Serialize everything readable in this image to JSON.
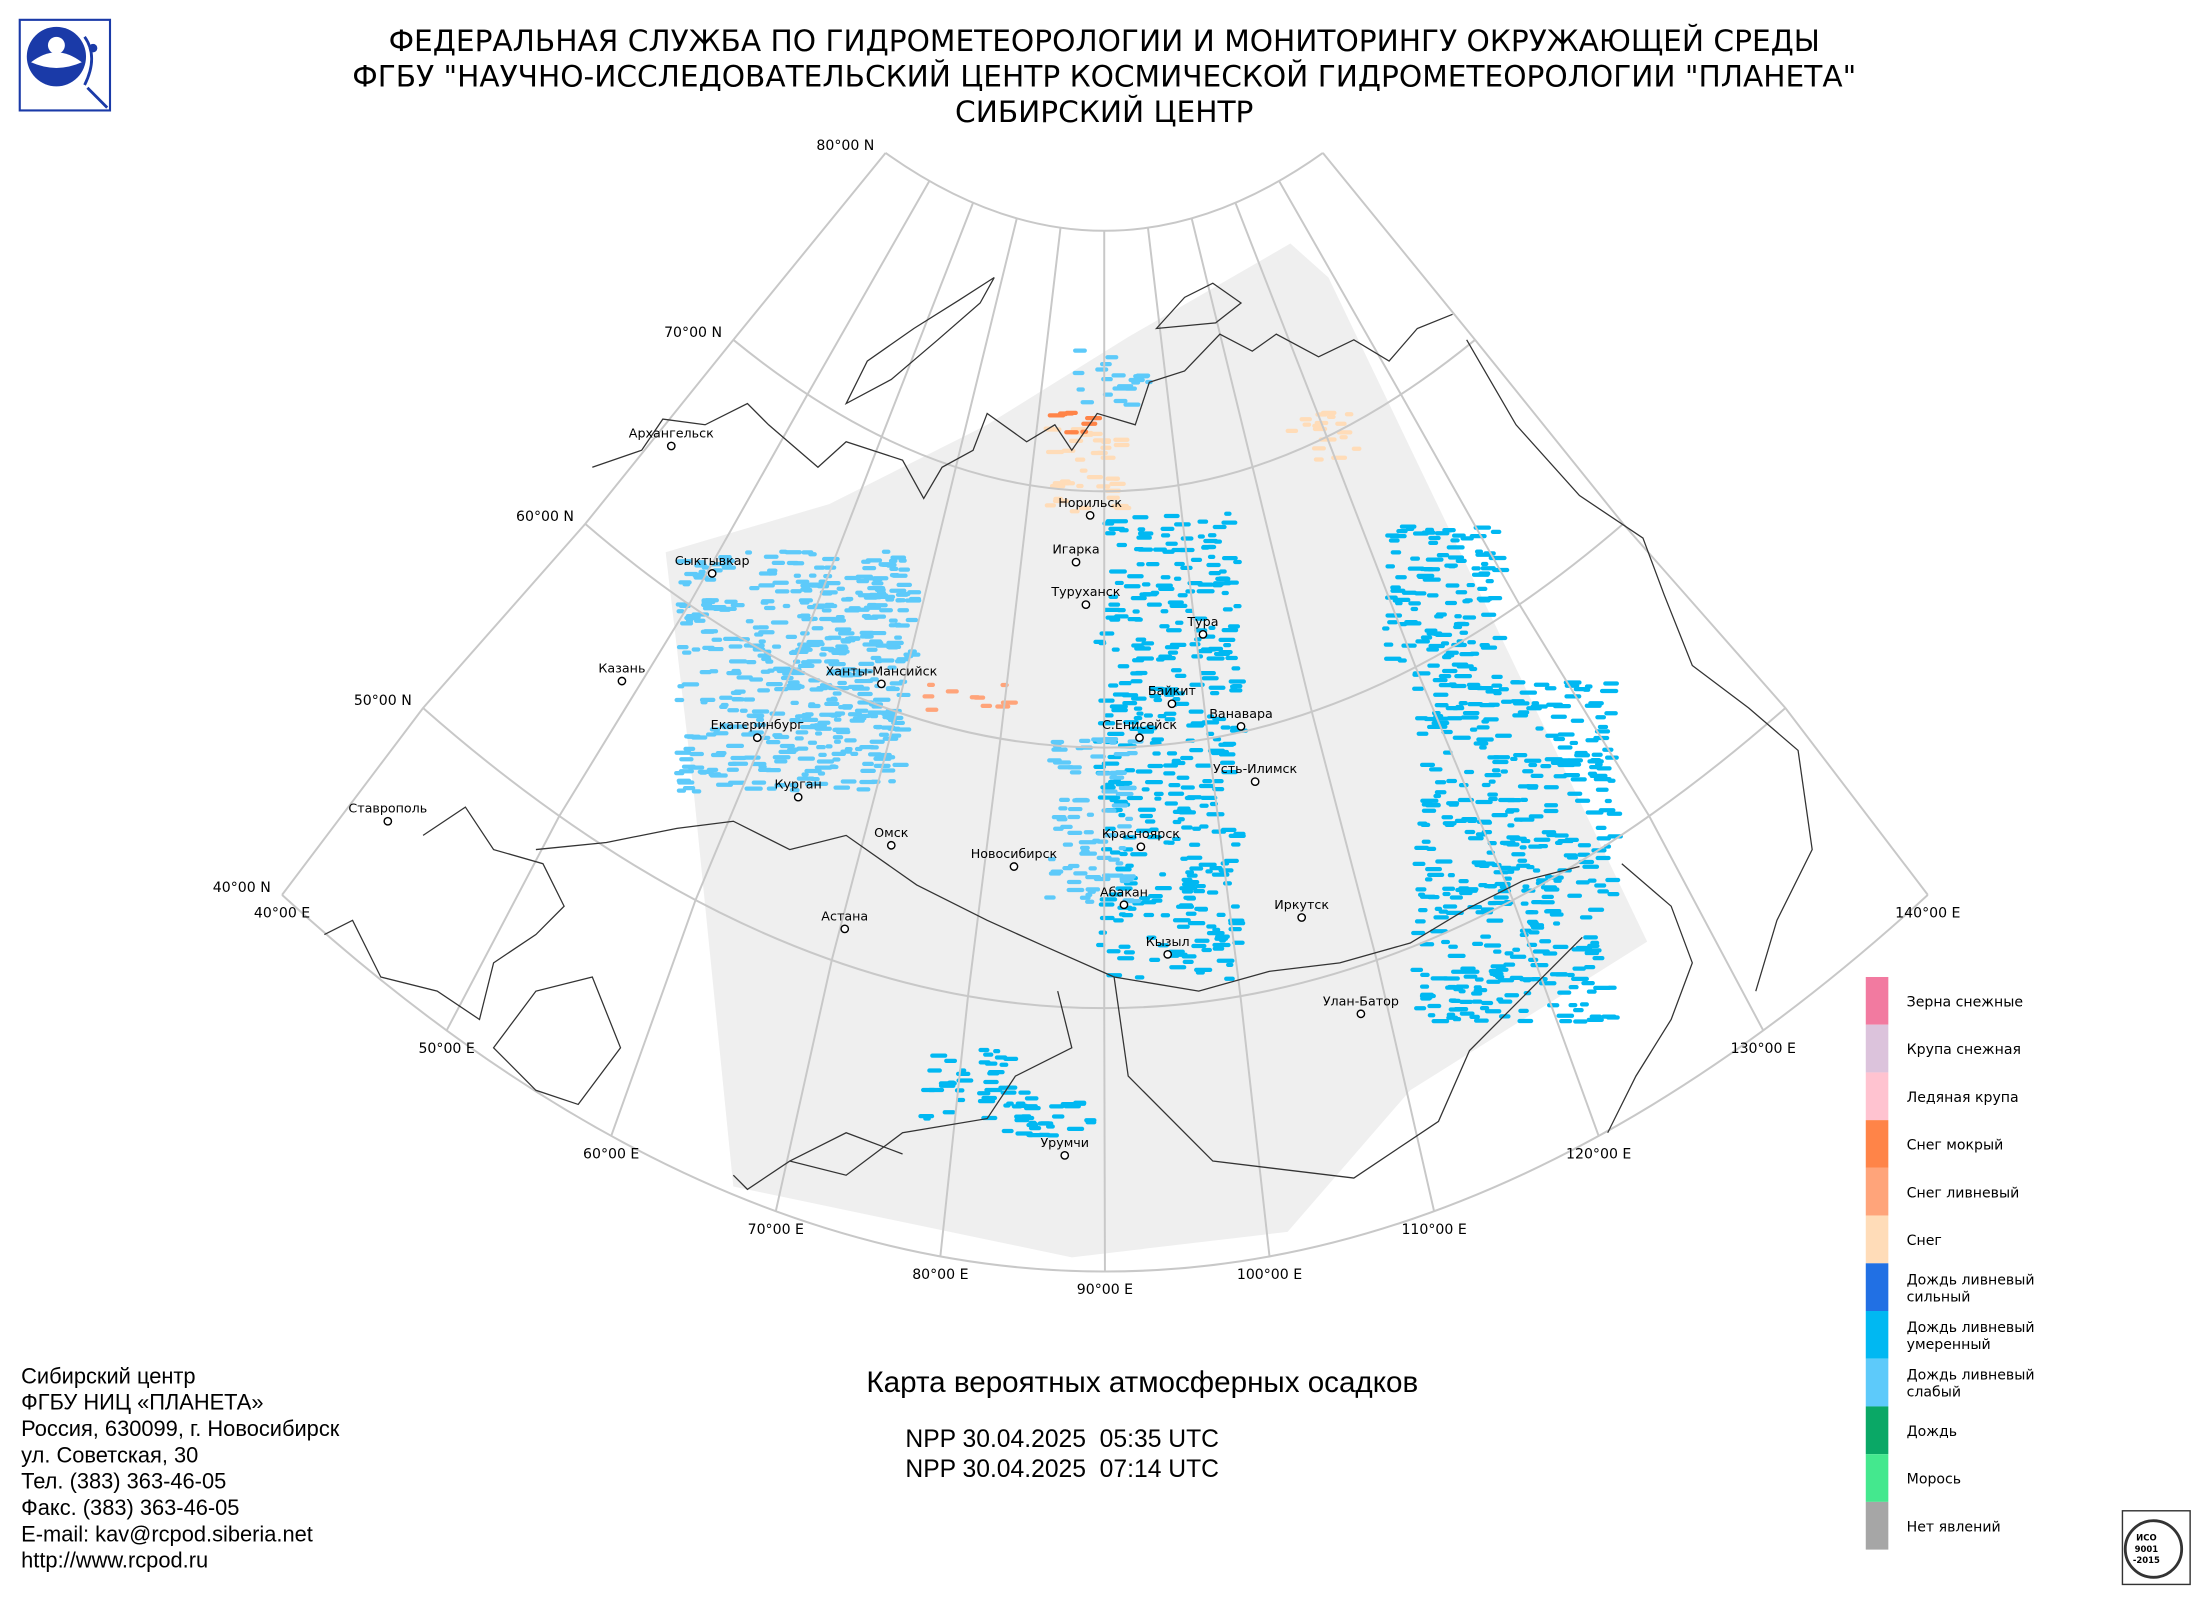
{
  "header": {
    "lines": [
      "ФЕДЕРАЛЬНАЯ СЛУЖБА ПО ГИДРОМЕТЕОРОЛОГИИ И МОНИТОРИНГУ ОКРУЖАЮЩЕЙ СРЕДЫ",
      "ФГБУ \"НАУЧНО-ИССЛЕДОВАТЕЛЬСКИЙ ЦЕНТР КОСМИЧЕСКОЙ ГИДРОМЕТЕОРОЛОГИИ \"ПЛАНЕТА\"",
      "СИБИРСКИЙ ЦЕНТР"
    ]
  },
  "graticule": {
    "latitudes": [
      "80°00 N",
      "70°00 N",
      "60°00 N",
      "50°00 N",
      "40°00 N"
    ],
    "longitudes": [
      "40°00 E",
      "50°00 E",
      "60°00 E",
      "70°00 E",
      "80°00 E",
      "90°00 E",
      "100°00 E",
      "110°00 E",
      "120°00 E",
      "130°00 E",
      "140°00 E"
    ]
  },
  "cities": [
    "Архангельск",
    "Сыктывкар",
    "Казань",
    "Ханты-Мансийск",
    "Екатеринбург",
    "Ставрополь",
    "Курган",
    "Омск",
    "Новосибирск",
    "Астана",
    "Норильск",
    "Игарка",
    "Туруханск",
    "Тура",
    "Байкит",
    "Ванавара",
    "С.Енисейск",
    "Усть-Илимск",
    "Красноярск",
    "Абакан",
    "Кызыл",
    "Иркутск",
    "Улан-Батор",
    "Урумчи"
  ],
  "legend": [
    {
      "label": [
        "Зерна снежные"
      ],
      "color": "#f27aa0"
    },
    {
      "label": [
        "Крупа снежная"
      ],
      "color": "#dcc3dc"
    },
    {
      "label": [
        "Ледяная крупа"
      ],
      "color": "#ffc3d0"
    },
    {
      "label": [
        "Снег мокрый"
      ],
      "color": "#ff8448"
    },
    {
      "label": [
        "Снег ливневый"
      ],
      "color": "#ffa47a"
    },
    {
      "label": [
        "Снег"
      ],
      "color": "#ffdcb8"
    },
    {
      "label": [
        "Дождь ливневый",
        "сильный"
      ],
      "color": "#2170e4"
    },
    {
      "label": [
        "Дождь ливневый",
        "умеренный"
      ],
      "color": "#00b8f2"
    },
    {
      "label": [
        "Дождь ливневый",
        "слабый"
      ],
      "color": "#5dcafa"
    },
    {
      "label": [
        "Дождь"
      ],
      "color": "#0aa866"
    },
    {
      "label": [
        "Морось"
      ],
      "color": "#44e88e"
    },
    {
      "label": [
        "Нет явлений"
      ],
      "color": "#a6a6a6"
    }
  ],
  "map_title": "Карта вероятных атмосферных осадков",
  "passes": [
    "NPP 30.04.2025  05:35 UTC",
    "NPP 30.04.2025  07:14 UTC"
  ],
  "contact": [
    "Сибирский центр",
    "ФГБУ НИЦ «ПЛАНЕТА»",
    "Россия, 630099, г. Новосибирск",
    "ул. Советская, 30",
    "Тел. (383) 363-46-05",
    "Факс. (383) 363-46-05",
    "E-mail: kav@rcpod.siberia.net",
    "http://www.rcpod.ru"
  ],
  "iso_badge": [
    "ИСО",
    "9001",
    "-2015"
  ]
}
